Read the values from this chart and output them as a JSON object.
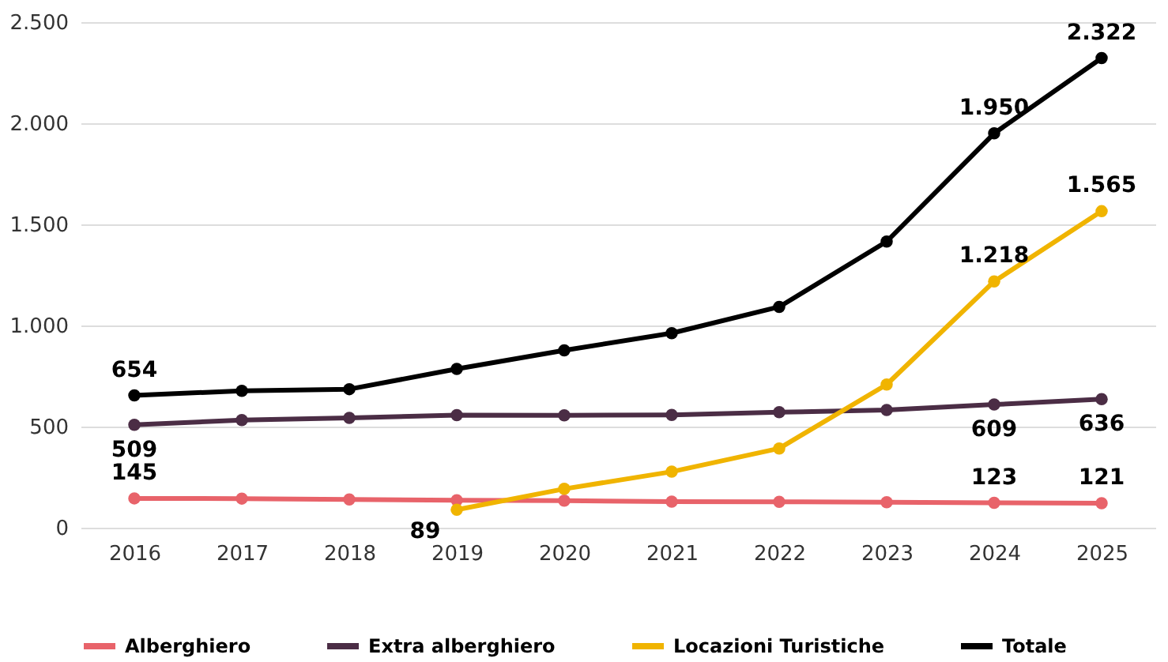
{
  "chart_data": {
    "type": "line",
    "categories": [
      "2016",
      "2017",
      "2018",
      "2019",
      "2020",
      "2021",
      "2022",
      "2023",
      "2024",
      "2025"
    ],
    "series": [
      {
        "name": "Alberghiero",
        "color": "#e8636a",
        "values": [
          145,
          144,
          140,
          136,
          134,
          129,
          128,
          126,
          123,
          121
        ],
        "value_labels": [
          "145",
          null,
          null,
          null,
          null,
          null,
          null,
          null,
          "123",
          "121"
        ]
      },
      {
        "name": "Extra alberghiero",
        "color": "#4b2d45",
        "values": [
          509,
          532,
          543,
          557,
          556,
          558,
          571,
          582,
          609,
          636
        ],
        "value_labels": [
          "509",
          null,
          null,
          null,
          null,
          null,
          null,
          null,
          "609",
          "636"
        ]
      },
      {
        "name": "Locazioni Turistiche",
        "color": "#f0b400",
        "values": [
          null,
          null,
          null,
          89,
          192,
          277,
          392,
          708,
          1218,
          1565
        ],
        "value_labels": [
          null,
          null,
          null,
          "89",
          null,
          null,
          null,
          null,
          "1.218",
          "1.565"
        ]
      },
      {
        "name": "Totale",
        "color": "#000000",
        "values": [
          654,
          677,
          685,
          785,
          877,
          962,
          1092,
          1415,
          1950,
          2322
        ],
        "value_labels": [
          "654",
          null,
          null,
          null,
          null,
          null,
          null,
          null,
          "1.950",
          "2.322"
        ]
      }
    ],
    "ylim": [
      0,
      2500
    ],
    "yticks": [
      {
        "value": 0,
        "label": "0"
      },
      {
        "value": 500,
        "label": "500"
      },
      {
        "value": 1000,
        "label": "1.000"
      },
      {
        "value": 1500,
        "label": "1.500"
      },
      {
        "value": 2000,
        "label": "2.000"
      },
      {
        "value": 2500,
        "label": "2.500"
      }
    ],
    "grid": "y",
    "legend": "bottom",
    "marker": "circle",
    "line_style": "solid"
  }
}
